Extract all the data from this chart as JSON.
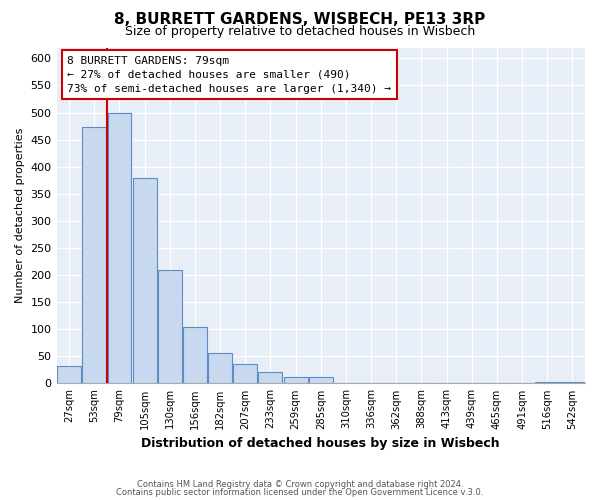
{
  "title": "8, BURRETT GARDENS, WISBECH, PE13 3RP",
  "subtitle": "Size of property relative to detached houses in Wisbech",
  "xlabel": "Distribution of detached houses by size in Wisbech",
  "ylabel": "Number of detached properties",
  "bar_labels": [
    "27sqm",
    "53sqm",
    "79sqm",
    "105sqm",
    "130sqm",
    "156sqm",
    "182sqm",
    "207sqm",
    "233sqm",
    "259sqm",
    "285sqm",
    "310sqm",
    "336sqm",
    "362sqm",
    "388sqm",
    "413sqm",
    "439sqm",
    "465sqm",
    "491sqm",
    "516sqm",
    "542sqm"
  ],
  "bar_values": [
    32,
    473,
    500,
    380,
    210,
    105,
    57,
    35,
    22,
    12,
    12,
    0,
    0,
    0,
    0,
    0,
    0,
    0,
    0,
    2,
    2
  ],
  "bar_color": "#c8d8ee",
  "bar_edge_color": "#5b8ec4",
  "ylim": [
    0,
    620
  ],
  "yticks": [
    0,
    50,
    100,
    150,
    200,
    250,
    300,
    350,
    400,
    450,
    500,
    550,
    600
  ],
  "property_line_color": "#cc0000",
  "annotation_text": "8 BURRETT GARDENS: 79sqm\n← 27% of detached houses are smaller (490)\n73% of semi-detached houses are larger (1,340) →",
  "annotation_box_color": "#ffffff",
  "annotation_box_edge": "#cc0000",
  "footer_line1": "Contains HM Land Registry data © Crown copyright and database right 2024.",
  "footer_line2": "Contains public sector information licensed under the Open Government Licence v.3.0.",
  "fig_bg_color": "#ffffff",
  "plot_bg_color": "#e8eef7",
  "grid_color": "#ffffff"
}
